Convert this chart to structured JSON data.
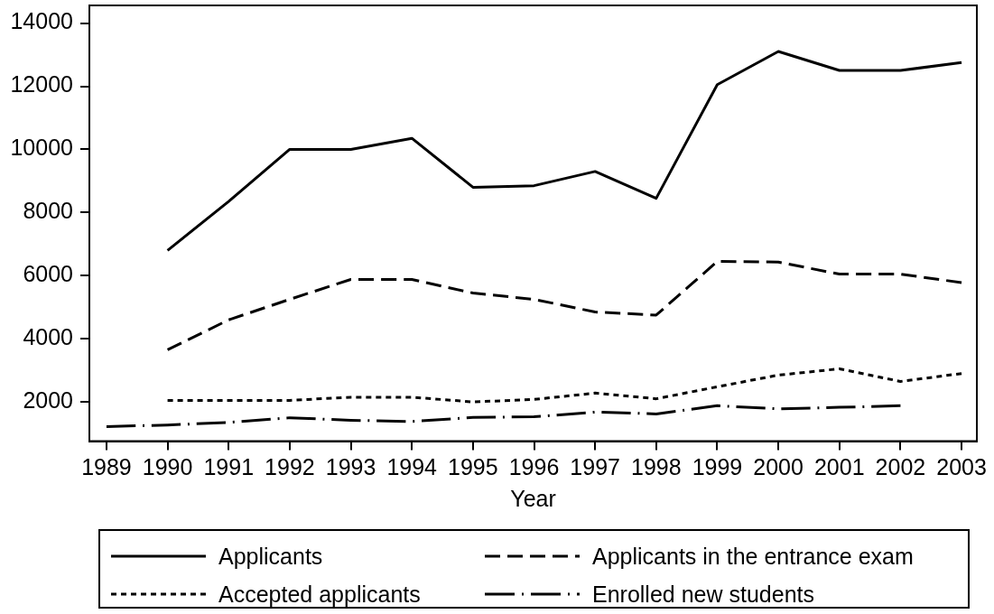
{
  "chart_data": {
    "type": "line",
    "xlabel": "Year",
    "x": [
      1989,
      1990,
      1991,
      1992,
      1993,
      1994,
      1995,
      1996,
      1997,
      1998,
      1999,
      2000,
      2001,
      2002,
      2003
    ],
    "series": [
      {
        "name": "Applicants",
        "color": "#000000",
        "line_style": "solid",
        "values": [
          null,
          6800,
          8350,
          10000,
          10000,
          10350,
          8800,
          8850,
          9300,
          8450,
          12050,
          13100,
          12500,
          12500,
          12750
        ]
      },
      {
        "name": "Applicants in the entrance exam",
        "color": "#000000",
        "line_style": "dashed",
        "values": [
          null,
          3650,
          4600,
          5250,
          5880,
          5880,
          5450,
          5250,
          4850,
          4750,
          6450,
          6430,
          6050,
          6050,
          5780
        ]
      },
      {
        "name": "Accepted applicants",
        "color": "#000000",
        "line_style": "dotted",
        "values": [
          null,
          2050,
          2050,
          2050,
          2150,
          2150,
          2000,
          2080,
          2280,
          2100,
          2480,
          2850,
          3050,
          2650,
          2900
        ]
      },
      {
        "name": "Enrolled new students",
        "color": "#000000",
        "line_style": "dashdot",
        "values": [
          1220,
          1270,
          1350,
          1500,
          1420,
          1380,
          1510,
          1530,
          1680,
          1620,
          1880,
          1780,
          1830,
          1880,
          null
        ]
      }
    ],
    "xlim": [
      1988.72,
      2003.25
    ],
    "xticks": [
      1989,
      1990,
      1991,
      1992,
      1993,
      1994,
      1995,
      1996,
      1997,
      1998,
      1999,
      2000,
      2001,
      2002,
      2003
    ],
    "ylim": [
      760,
      14560
    ],
    "yticks": [
      2000,
      4000,
      6000,
      8000,
      10000,
      12000,
      14000
    ],
    "legend": "bottom",
    "marker": "none"
  }
}
